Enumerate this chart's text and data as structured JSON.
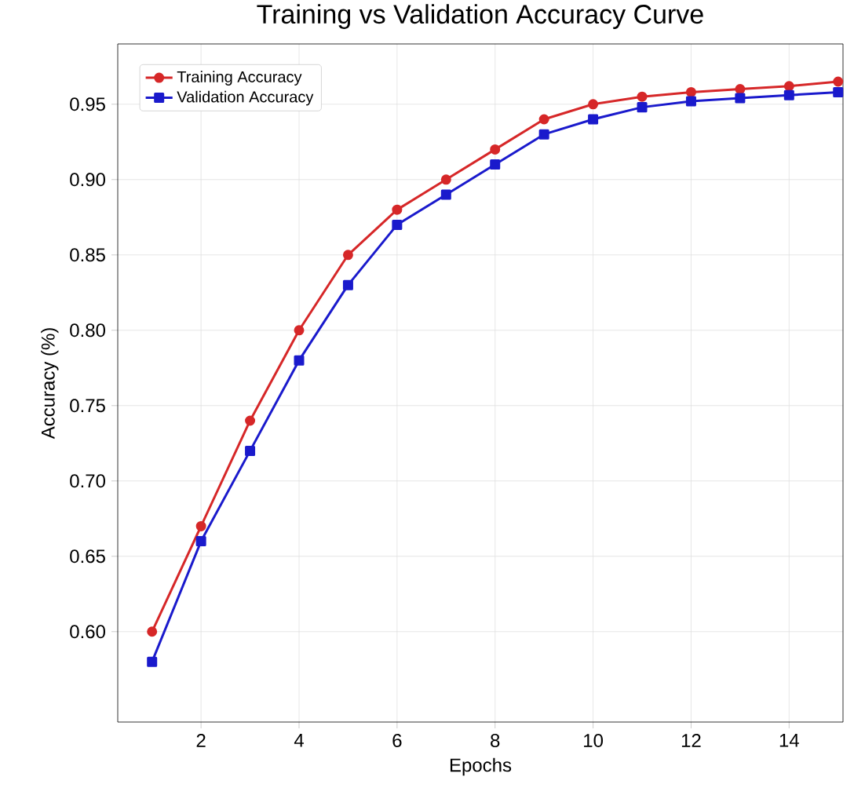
{
  "chart_data": {
    "type": "line",
    "title": "Training vs Validation Accuracy Curve",
    "xlabel": "Epochs",
    "ylabel": "Accuracy (%)",
    "x": [
      1,
      2,
      3,
      4,
      5,
      6,
      7,
      8,
      9,
      10,
      11,
      12,
      13,
      14,
      15
    ],
    "series": [
      {
        "name": "Training Accuracy",
        "color": "#d62728",
        "marker": "circle",
        "values": [
          0.6,
          0.67,
          0.74,
          0.8,
          0.85,
          0.88,
          0.9,
          0.92,
          0.94,
          0.95,
          0.955,
          0.958,
          0.96,
          0.962,
          0.965
        ]
      },
      {
        "name": "Validation Accuracy",
        "color": "#1a1acc",
        "marker": "square",
        "values": [
          0.58,
          0.66,
          0.72,
          0.78,
          0.83,
          0.87,
          0.89,
          0.91,
          0.93,
          0.94,
          0.948,
          0.952,
          0.954,
          0.956,
          0.958
        ]
      }
    ],
    "xlim": [
      0.3,
      15.1
    ],
    "ylim": [
      0.54,
      0.99
    ],
    "xticks": [
      2,
      4,
      6,
      8,
      10,
      12,
      14
    ],
    "yticks": [
      {
        "value": 0.6,
        "label": "0.60"
      },
      {
        "value": 0.65,
        "label": "0.65"
      },
      {
        "value": 0.7,
        "label": "0.70"
      },
      {
        "value": 0.75,
        "label": "0.75"
      },
      {
        "value": 0.8,
        "label": "0.80"
      },
      {
        "value": 0.85,
        "label": "0.85"
      },
      {
        "value": 0.9,
        "label": "0.90"
      },
      {
        "value": 0.95,
        "label": "0.95"
      }
    ],
    "grid": true,
    "legend": "top left",
    "line_style": "solid"
  }
}
